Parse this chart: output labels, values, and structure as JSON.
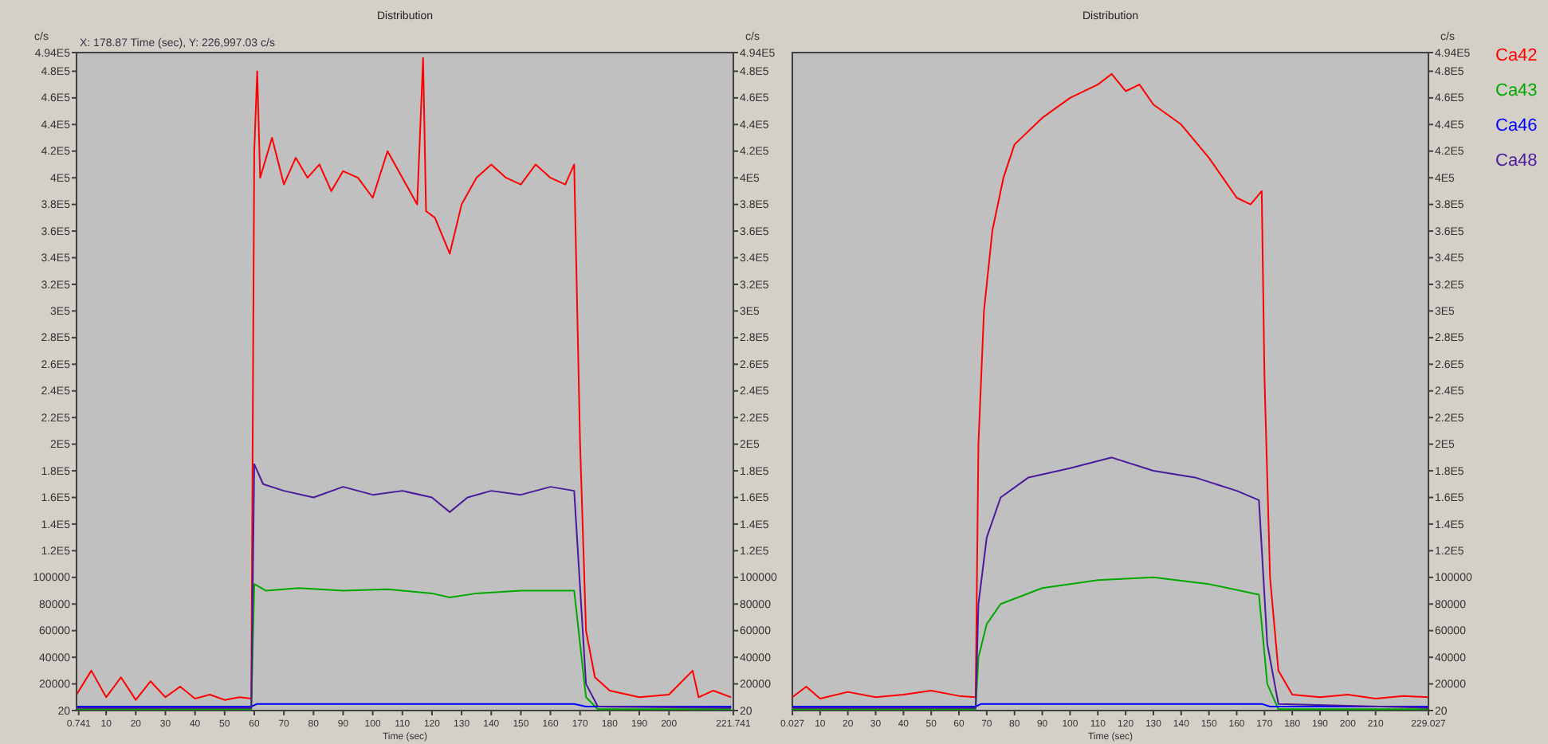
{
  "chart_data": [
    {
      "type": "line",
      "title": "Distribution",
      "xlabel": "Time (sec)",
      "ylabel": "c/s",
      "y2label": "c/s",
      "annotations": [
        "X: 178.87 Time (sec), Y: 226,997.03 c/s"
      ],
      "grid": false,
      "legend": false,
      "xlim": [
        0,
        221.741
      ],
      "xticks": [
        {
          "value": 0.741,
          "label": "0.741"
        },
        10,
        20,
        30,
        40,
        50,
        60,
        70,
        80,
        90,
        100,
        110,
        120,
        130,
        140,
        150,
        160,
        170,
        180,
        190,
        200,
        {
          "value": 221.741,
          "label": "221.741"
        }
      ],
      "ylim": [
        20,
        494000
      ],
      "yticks": [
        20,
        20000,
        40000,
        60000,
        80000,
        100000,
        {
          "value": 120000,
          "label": "1.2E5"
        },
        {
          "value": 140000,
          "label": "1.4E5"
        },
        {
          "value": 160000,
          "label": "1.6E5"
        },
        {
          "value": 180000,
          "label": "1.8E5"
        },
        {
          "value": 200000,
          "label": "2E5"
        },
        {
          "value": 220000,
          "label": "2.2E5"
        },
        {
          "value": 240000,
          "label": "2.4E5"
        },
        {
          "value": 260000,
          "label": "2.6E5"
        },
        {
          "value": 280000,
          "label": "2.8E5"
        },
        {
          "value": 300000,
          "label": "3E5"
        },
        {
          "value": 320000,
          "label": "3.2E5"
        },
        {
          "value": 340000,
          "label": "3.4E5"
        },
        {
          "value": 360000,
          "label": "3.6E5"
        },
        {
          "value": 380000,
          "label": "3.8E5"
        },
        {
          "value": 400000,
          "label": "4E5"
        },
        {
          "value": 420000,
          "label": "4.2E5"
        },
        {
          "value": 440000,
          "label": "4.4E5"
        },
        {
          "value": 460000,
          "label": "4.6E5"
        },
        {
          "value": 480000,
          "label": "4.8E5"
        },
        {
          "value": 494000,
          "label": "4.94E5"
        }
      ],
      "y2lim": [
        20,
        494000
      ],
      "y2ticks": [
        20,
        20000,
        40000,
        60000,
        80000,
        100000,
        {
          "value": 120000,
          "label": "1.2E5"
        },
        {
          "value": 140000,
          "label": "1.4E5"
        },
        {
          "value": 160000,
          "label": "1.6E5"
        },
        {
          "value": 180000,
          "label": "1.8E5"
        },
        {
          "value": 200000,
          "label": "2E5"
        },
        {
          "value": 220000,
          "label": "2.2E5"
        },
        {
          "value": 240000,
          "label": "2.4E5"
        },
        {
          "value": 260000,
          "label": "2.6E5"
        },
        {
          "value": 280000,
          "label": "2.8E5"
        },
        {
          "value": 300000,
          "label": "3E5"
        },
        {
          "value": 320000,
          "label": "3.2E5"
        },
        {
          "value": 340000,
          "label": "3.4E5"
        },
        {
          "value": 360000,
          "label": "3.6E5"
        },
        {
          "value": 380000,
          "label": "3.8E5"
        },
        {
          "value": 400000,
          "label": "4E5"
        },
        {
          "value": 420000,
          "label": "4.2E5"
        },
        {
          "value": 440000,
          "label": "4.4E5"
        },
        {
          "value": 460000,
          "label": "4.6E5"
        },
        {
          "value": 480000,
          "label": "4.8E5"
        },
        {
          "value": 494000,
          "label": "4.94E5"
        }
      ],
      "series": [
        {
          "color": "#ff0000",
          "x": [
            0,
            5,
            10,
            15,
            20,
            25,
            30,
            35,
            40,
            45,
            50,
            55,
            59,
            60,
            61,
            62,
            66,
            70,
            74,
            78,
            82,
            86,
            90,
            95,
            100,
            105,
            110,
            115,
            117,
            118,
            121,
            126,
            130,
            135,
            140,
            145,
            150,
            155,
            160,
            165,
            168,
            170,
            172,
            175,
            180,
            190,
            200,
            208,
            210,
            215,
            221
          ],
          "values": [
            12000,
            30000,
            10000,
            25000,
            8000,
            22000,
            10000,
            18000,
            9000,
            12000,
            8000,
            10000,
            9000,
            420000,
            480000,
            400000,
            430000,
            395000,
            415000,
            400000,
            410000,
            390000,
            405000,
            400000,
            385000,
            420000,
            400000,
            380000,
            490000,
            375000,
            370000,
            343000,
            380000,
            400000,
            410000,
            400000,
            395000,
            410000,
            400000,
            395000,
            410000,
            200000,
            60000,
            25000,
            15000,
            10000,
            12000,
            30000,
            10000,
            15000,
            10000
          ]
        },
        {
          "color": "#00a800",
          "x": [
            0,
            59,
            60,
            64,
            75,
            90,
            105,
            120,
            126,
            135,
            150,
            168,
            172,
            176,
            221
          ],
          "values": [
            1000,
            1000,
            95000,
            90000,
            92000,
            90000,
            91000,
            88000,
            85000,
            88000,
            90000,
            90000,
            10000,
            1000,
            1000
          ]
        },
        {
          "color": "#0000ff",
          "x": [
            0,
            59,
            61,
            168,
            172,
            221
          ],
          "values": [
            3000,
            3000,
            5000,
            5000,
            3000,
            3000
          ]
        },
        {
          "color": "#4b1a9a",
          "x": [
            0,
            59,
            60,
            63,
            70,
            80,
            90,
            100,
            110,
            120,
            126,
            132,
            140,
            150,
            160,
            168,
            172,
            176,
            221
          ],
          "values": [
            2000,
            2000,
            185000,
            170000,
            165000,
            160000,
            168000,
            162000,
            165000,
            160000,
            149000,
            160000,
            165000,
            162000,
            168000,
            165000,
            20000,
            3000,
            2000
          ]
        }
      ]
    },
    {
      "type": "line",
      "title": "Distribution",
      "xlabel": "Time (sec)",
      "y2label": "c/s",
      "grid": false,
      "legend": "right",
      "xlim": [
        0,
        229.027
      ],
      "xticks": [
        {
          "value": 0.027,
          "label": "0.027"
        },
        10,
        20,
        30,
        40,
        50,
        60,
        70,
        80,
        90,
        100,
        110,
        120,
        130,
        140,
        150,
        160,
        170,
        180,
        190,
        200,
        210,
        {
          "value": 229.027,
          "label": "229.027"
        }
      ],
      "y2lim": [
        20,
        494000
      ],
      "y2ticks": [
        20,
        20000,
        40000,
        60000,
        80000,
        100000,
        {
          "value": 120000,
          "label": "1.2E5"
        },
        {
          "value": 140000,
          "label": "1.4E5"
        },
        {
          "value": 160000,
          "label": "1.6E5"
        },
        {
          "value": 180000,
          "label": "1.8E5"
        },
        {
          "value": 200000,
          "label": "2E5"
        },
        {
          "value": 220000,
          "label": "2.2E5"
        },
        {
          "value": 240000,
          "label": "2.4E5"
        },
        {
          "value": 260000,
          "label": "2.6E5"
        },
        {
          "value": 280000,
          "label": "2.8E5"
        },
        {
          "value": 300000,
          "label": "3E5"
        },
        {
          "value": 320000,
          "label": "3.2E5"
        },
        {
          "value": 340000,
          "label": "3.4E5"
        },
        {
          "value": 360000,
          "label": "3.6E5"
        },
        {
          "value": 380000,
          "label": "3.8E5"
        },
        {
          "value": 400000,
          "label": "4E5"
        },
        {
          "value": 420000,
          "label": "4.2E5"
        },
        {
          "value": 440000,
          "label": "4.4E5"
        },
        {
          "value": 460000,
          "label": "4.6E5"
        },
        {
          "value": 480000,
          "label": "4.8E5"
        },
        {
          "value": 494000,
          "label": "4.94E5"
        }
      ],
      "series": [
        {
          "name": "Ca42",
          "axis": "y2",
          "color": "#ff0000",
          "x": [
            0,
            5,
            10,
            20,
            30,
            40,
            50,
            60,
            66,
            67,
            69,
            72,
            76,
            80,
            90,
            100,
            110,
            115,
            120,
            125,
            130,
            140,
            150,
            155,
            160,
            165,
            169,
            170,
            172,
            175,
            180,
            190,
            200,
            210,
            220,
            229
          ],
          "values": [
            10000,
            18000,
            9000,
            14000,
            10000,
            12000,
            15000,
            11000,
            10000,
            200000,
            300000,
            360000,
            400000,
            425000,
            445000,
            460000,
            470000,
            478000,
            465000,
            470000,
            455000,
            440000,
            415000,
            400000,
            385000,
            380000,
            390000,
            250000,
            100000,
            30000,
            12000,
            10000,
            12000,
            9000,
            11000,
            10000
          ]
        },
        {
          "name": "Ca43",
          "axis": "y2",
          "color": "#00a800",
          "x": [
            0,
            66,
            67,
            70,
            75,
            90,
            110,
            130,
            150,
            168,
            171,
            175,
            229
          ],
          "values": [
            1000,
            1000,
            40000,
            65000,
            80000,
            92000,
            98000,
            100000,
            95000,
            87000,
            20000,
            1000,
            1000
          ]
        },
        {
          "name": "Ca46",
          "axis": "y2",
          "color": "#0000ff",
          "x": [
            0,
            66,
            68,
            169,
            172,
            229
          ],
          "values": [
            3000,
            3000,
            5000,
            5000,
            3000,
            3000
          ]
        },
        {
          "name": "Ca48",
          "axis": "y2",
          "color": "#4b1a9a",
          "x": [
            0,
            66,
            67,
            70,
            75,
            85,
            100,
            115,
            130,
            145,
            160,
            168,
            171,
            175,
            229
          ],
          "values": [
            2000,
            2000,
            80000,
            130000,
            160000,
            175000,
            182000,
            190000,
            180000,
            175000,
            165000,
            158000,
            50000,
            5000,
            2000
          ]
        }
      ]
    }
  ]
}
